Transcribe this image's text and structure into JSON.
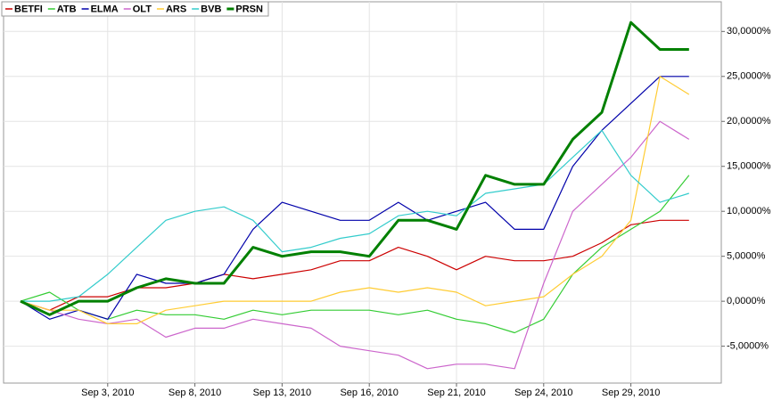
{
  "chart_data": {
    "type": "line",
    "categories": [
      null,
      null,
      null,
      "Sep 3, 2010",
      null,
      null,
      "Sep 8, 2010",
      null,
      null,
      "Sep 13, 2010",
      null,
      null,
      "Sep 16, 2010",
      null,
      null,
      "Sep 21, 2010",
      null,
      null,
      "Sep 24, 2010",
      null,
      null,
      "Sep 29, 2010",
      null,
      null
    ],
    "series": [
      {
        "name": "BETFI",
        "color": "#cc0000",
        "values": [
          0,
          -1,
          0.5,
          0.5,
          1.5,
          1.5,
          2,
          3,
          2.5,
          3,
          3.5,
          4.5,
          4.5,
          6,
          5,
          3.5,
          5,
          4.5,
          4.5,
          5,
          6.5,
          8.5,
          9,
          9
        ]
      },
      {
        "name": "ATB",
        "color": "#33cc33",
        "values": [
          0,
          1,
          -1,
          -2,
          -1,
          -1.5,
          -1.5,
          -2,
          -1,
          -1.5,
          -1,
          -1,
          -1,
          -1.5,
          -1,
          -2,
          -2.5,
          -3.5,
          -2,
          3,
          6,
          8,
          10,
          14
        ]
      },
      {
        "name": "ELMA",
        "color": "#0000aa",
        "values": [
          0,
          -2,
          -1,
          -2,
          3,
          2,
          2,
          3,
          8,
          11,
          10,
          9,
          9,
          11,
          9,
          10,
          11,
          8,
          8,
          15,
          19,
          22,
          25,
          25
        ]
      },
      {
        "name": "OLT",
        "color": "#cc66cc",
        "values": [
          0,
          -1,
          -2,
          -2.5,
          -2,
          -4,
          -3,
          -3,
          -2,
          -2.5,
          -3,
          -5,
          -5.5,
          -6,
          -7.5,
          -7,
          -7,
          -7.5,
          2,
          10,
          13,
          16,
          20,
          18
        ]
      },
      {
        "name": "ARS",
        "color": "#ffcc33",
        "values": [
          0,
          -1,
          -1,
          -2.5,
          -2.5,
          -1,
          -0.5,
          0,
          0,
          0,
          0,
          1,
          1.5,
          1,
          1.5,
          1,
          -0.5,
          0,
          0.5,
          3,
          5,
          9,
          25,
          23
        ]
      },
      {
        "name": "BVB",
        "color": "#33cccc",
        "values": [
          0,
          0,
          0.5,
          3,
          6,
          9,
          10,
          10.5,
          9,
          5.5,
          6,
          7,
          7.5,
          9.5,
          10,
          9.5,
          12,
          12.5,
          13,
          16,
          19,
          14,
          11,
          12
        ]
      },
      {
        "name": "PRSN",
        "color": "#008000",
        "values": [
          0,
          -1.5,
          0,
          0,
          1.5,
          2.5,
          2,
          2,
          6,
          5,
          5.5,
          5.5,
          5,
          9,
          9,
          8,
          14,
          13,
          13,
          18,
          21,
          31,
          28,
          28
        ]
      }
    ],
    "ylim": [
      -9.1,
      33.3
    ],
    "yticks": [
      {
        "value": -5,
        "label": "-5,0000%"
      },
      {
        "value": 0,
        "label": "0,0000%"
      },
      {
        "value": 5,
        "label": "5,0000%"
      },
      {
        "value": 10,
        "label": "10,0000%"
      },
      {
        "value": 15,
        "label": "15,0000%"
      },
      {
        "value": 20,
        "label": "20,0000%"
      },
      {
        "value": 25,
        "label": "25,0000%"
      },
      {
        "value": 30,
        "label": "30,0000%"
      }
    ],
    "grid": true,
    "legend": "top-left"
  }
}
